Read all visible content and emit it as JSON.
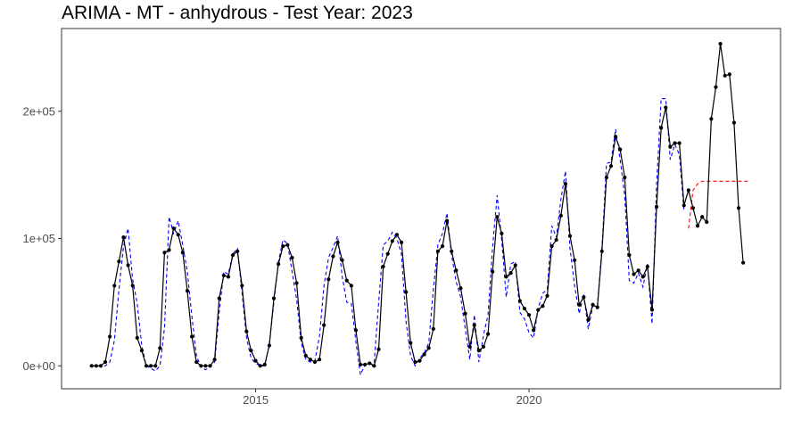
{
  "chart_data": {
    "type": "line",
    "title": "ARIMA - MT - anhydrous - Test Year: 2023",
    "xlabel": "",
    "ylabel": "",
    "x_ticks": [
      {
        "value": 2015,
        "label": "2015"
      },
      {
        "value": 2020,
        "label": "2020"
      }
    ],
    "y_ticks": [
      {
        "value": 0,
        "label": "0e+00"
      },
      {
        "value": 100000,
        "label": "1e+05"
      },
      {
        "value": 200000,
        "label": "2e+05"
      }
    ],
    "xlim": [
      2011.45,
      2024.6
    ],
    "ylim": [
      -18000,
      265000
    ],
    "grid": false,
    "legend": "none",
    "x_start_year": 2012,
    "series": [
      {
        "role": "observed",
        "color": "#000000",
        "style": "solid",
        "markers": true,
        "values": [
          0,
          0,
          0,
          3000,
          23000,
          63000,
          82000,
          101000,
          79000,
          63000,
          22000,
          12000,
          0,
          0,
          0,
          14000,
          89000,
          91000,
          108000,
          103000,
          89000,
          59000,
          23000,
          3000,
          0,
          0,
          0,
          5000,
          53000,
          71000,
          70000,
          87000,
          90000,
          63000,
          27000,
          12000,
          4000,
          0,
          1000,
          16000,
          53000,
          80000,
          94000,
          95000,
          85000,
          65000,
          22000,
          8000,
          5000,
          3000,
          5000,
          32000,
          68000,
          86000,
          97000,
          83000,
          67000,
          63000,
          28000,
          1000,
          1000,
          2000,
          0,
          13000,
          78000,
          88000,
          98000,
          103000,
          97000,
          58000,
          18000,
          3000,
          4000,
          9000,
          14000,
          29000,
          90000,
          94000,
          114000,
          90000,
          75000,
          61000,
          41000,
          15000,
          32000,
          12000,
          15000,
          25000,
          74000,
          117000,
          104000,
          70000,
          73000,
          79000,
          51000,
          45000,
          40000,
          28000,
          44000,
          47000,
          55000,
          94000,
          99000,
          118000,
          143000,
          102000,
          83000,
          48000,
          54000,
          36000,
          48000,
          46000,
          90000,
          148000,
          157000,
          180000,
          170000,
          148000,
          87000,
          72000,
          75000,
          70000,
          78000,
          44000,
          125000,
          187000,
          203000,
          172000,
          175000,
          175000,
          126000,
          138000,
          124000,
          110000,
          117000,
          113000,
          194000,
          219000,
          253000,
          228000,
          229000,
          191000,
          124000,
          81000
        ]
      },
      {
        "role": "fitted",
        "color": "#0000ff",
        "style": "dashed",
        "markers": false,
        "values": [
          0,
          0,
          0,
          0,
          3000,
          20000,
          60000,
          94000,
          108000,
          68000,
          49000,
          16000,
          0,
          -2000,
          -4000,
          0,
          30000,
          117000,
          104000,
          114000,
          95000,
          74000,
          39000,
          8000,
          -1000,
          -3000,
          -1000,
          3000,
          42000,
          74000,
          72000,
          88000,
          92000,
          58000,
          22000,
          6000,
          2000,
          0,
          0,
          17000,
          50000,
          82000,
          99000,
          96000,
          74000,
          52000,
          18000,
          5000,
          3000,
          4000,
          23000,
          63000,
          85000,
          93000,
          102000,
          70000,
          50000,
          49000,
          19000,
          -7000,
          1000,
          1000,
          2000,
          50000,
          95000,
          98000,
          105000,
          100000,
          88000,
          35000,
          8000,
          0,
          6000,
          10000,
          18000,
          60000,
          95000,
          104000,
          120000,
          87000,
          66000,
          54000,
          29000,
          5000,
          40000,
          3000,
          24000,
          40000,
          93000,
          134000,
          99000,
          54000,
          80000,
          82000,
          42000,
          37000,
          26000,
          22000,
          45000,
          57000,
          60000,
          110000,
          101000,
          131000,
          153000,
          92000,
          63000,
          41000,
          56000,
          29000,
          47000,
          47000,
          92000,
          159000,
          160000,
          186000,
          162000,
          134000,
          67000,
          65000,
          73000,
          62000,
          80000,
          33000,
          143000,
          210000,
          210000,
          162000,
          174000,
          166000,
          122000
        ]
      },
      {
        "role": "forecast",
        "color": "#ff0000",
        "style": "dashed",
        "markers": false,
        "start_index": 131,
        "values": [
          108000,
          138000,
          143000,
          145000,
          145000,
          145000,
          145000,
          145000,
          145000,
          145000,
          145000,
          145000,
          145000,
          145000
        ]
      }
    ]
  }
}
